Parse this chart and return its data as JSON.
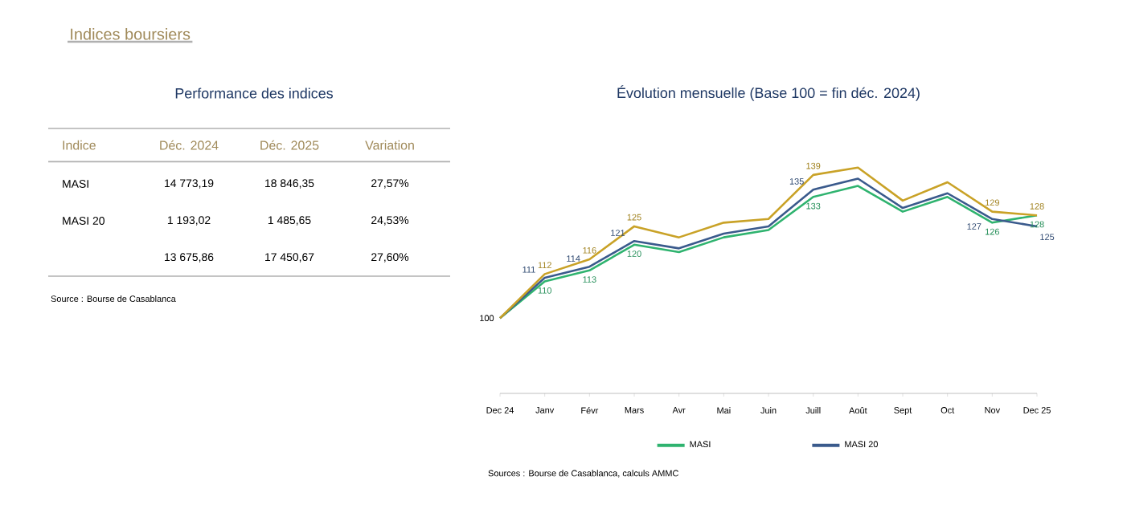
{
  "chart_data": [
    {
      "type": "other",
      "title": "Indices boursiers",
      "subtitle": "Performance des indices",
      "ylabel": "Indice",
      "categories": [
        "Déc. 2024",
        "Déc. 2025",
        "Variation"
      ],
      "y_categories": [
        "MASI",
        "MASI 20",
        null
      ],
      "cell_labels": [
        [
          "14 773,19",
          "18 846,35",
          "27,57%"
        ],
        [
          "1 193,02",
          "1 485,65",
          "24,53%"
        ],
        [
          "13 675,86",
          "17 450,67",
          "27,60%"
        ]
      ],
      "annotations": [
        "Source : Bourse de Casablanca"
      ]
    },
    {
      "type": "line",
      "title": "Évolution mensuelle (Base 100 = fin déc. 2024)",
      "categories": [
        "Dec 24",
        "Janv",
        "Févr",
        "Mars",
        "Avr",
        "Mai",
        "Juin",
        "Juill",
        "Août",
        "Sept",
        "Oct",
        "Nov",
        "Dec 25"
      ],
      "series": [
        {
          "name": "MASI",
          "color": "#2fb36f",
          "values": [
            100,
            110,
            113,
            120,
            118,
            122,
            124,
            133,
            136,
            129,
            133,
            126,
            128
          ],
          "value_labels": [
            "100",
            "110",
            "113",
            "120",
            null,
            null,
            null,
            "133",
            null,
            null,
            null,
            "126",
            "128"
          ]
        },
        {
          "name": "MASI 20",
          "color": "#3a5a8c",
          "values": [
            100,
            111,
            114,
            121,
            119,
            123,
            125,
            135,
            138,
            130,
            134,
            127,
            125
          ],
          "value_labels": [
            null,
            "111",
            "114",
            "121",
            null,
            null,
            null,
            "135",
            null,
            null,
            null,
            "127",
            "125"
          ]
        },
        {
          "color": "#c9a227",
          "values": [
            100,
            112,
            116,
            125,
            122,
            126,
            127,
            139,
            141,
            132,
            137,
            129,
            128
          ],
          "value_labels": [
            null,
            "112",
            "116",
            "125",
            null,
            null,
            null,
            "139",
            null,
            null,
            null,
            "129",
            "128"
          ]
        }
      ],
      "legend": "bottom",
      "annotations": [
        "Sources : Bourse de Casablanca, calculs AMMC"
      ]
    }
  ]
}
